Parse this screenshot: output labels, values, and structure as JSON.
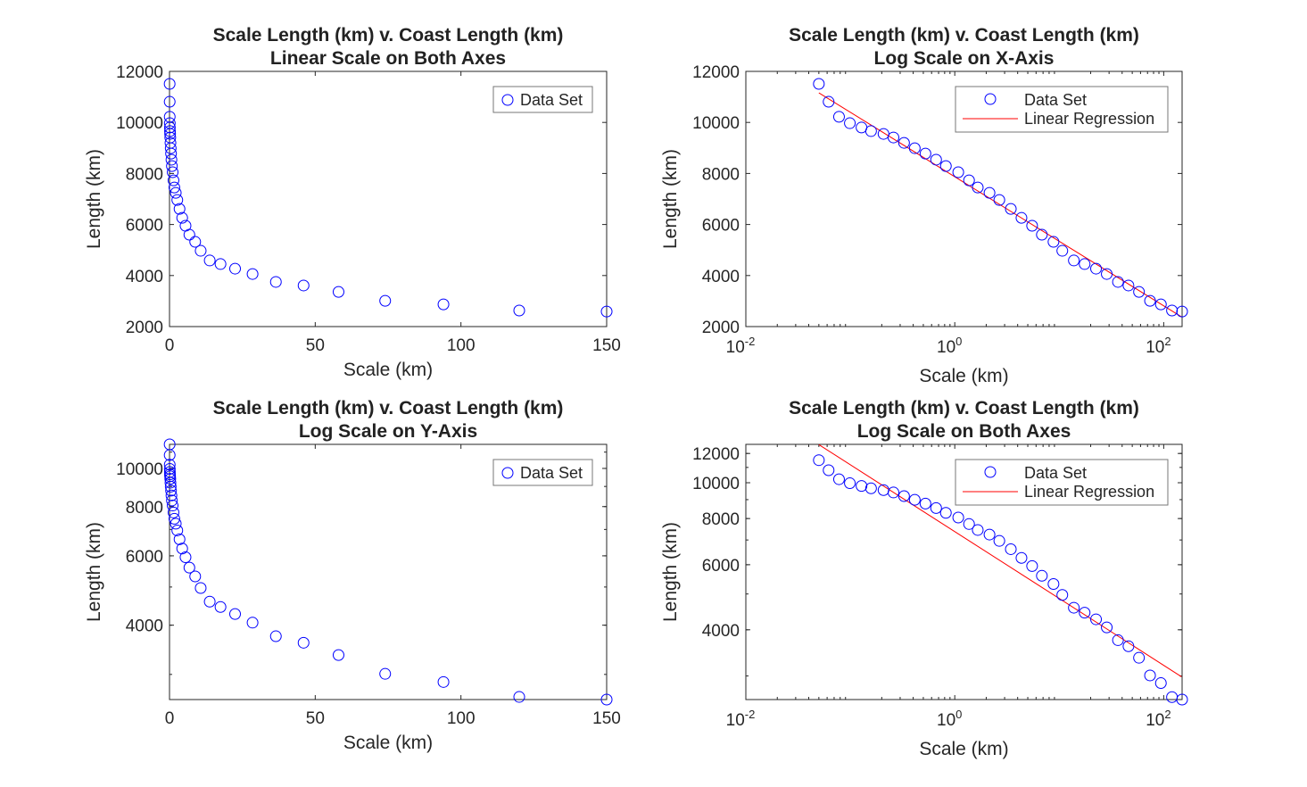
{
  "colors": {
    "marker": "#0000ff",
    "regression": "#ff0000",
    "axis": "#262626"
  },
  "chart_data": [
    {
      "type": "scatter",
      "title": [
        "Scale Length (km) v. Coast Length (km)",
        "Linear Scale on Both Axes"
      ],
      "xlabel": "Scale (km)",
      "ylabel": "Length (km)",
      "xscale": "linear",
      "yscale": "linear",
      "xlim": [
        0,
        150
      ],
      "ylim": [
        2000,
        12000
      ],
      "xticks": [
        0,
        50,
        100,
        150
      ],
      "yticks": [
        2000,
        4000,
        6000,
        8000,
        10000,
        12000
      ],
      "legend": {
        "position": "top-right",
        "entries": [
          "Data Set"
        ]
      },
      "grid": false
    },
    {
      "type": "scatter",
      "title": [
        "Scale Length (km) v. Coast Length (km)",
        "Log Scale on X-Axis"
      ],
      "xlabel": "Scale (km)",
      "ylabel": "Length (km)",
      "xscale": "log",
      "yscale": "linear",
      "xlim": [
        0.01,
        150
      ],
      "ylim": [
        2000,
        12000
      ],
      "xticks": [
        0.01,
        1,
        100
      ],
      "yticks": [
        2000,
        4000,
        6000,
        8000,
        10000,
        12000
      ],
      "legend": {
        "position": "top-right",
        "entries": [
          "Data Set",
          "Linear Regression"
        ]
      },
      "regression": {
        "x": [
          0.05,
          148
        ],
        "y": [
          11160,
          2383
        ]
      },
      "grid": false
    },
    {
      "type": "scatter",
      "title": [
        "Scale Length (km) v. Coast Length (km)",
        "Log Scale on Y-Axis"
      ],
      "xlabel": "Scale (km)",
      "ylabel": "Length (km)",
      "xscale": "linear",
      "yscale": "log",
      "xlim": [
        0,
        150
      ],
      "ylim": [
        2590,
        11510
      ],
      "xticks": [
        0,
        50,
        100,
        150
      ],
      "yticks": [
        4000,
        6000,
        8000,
        10000
      ],
      "legend": {
        "position": "top-right",
        "entries": [
          "Data Set"
        ]
      },
      "grid": false
    },
    {
      "type": "scatter",
      "title": [
        "Scale Length (km) v. Coast Length (km)",
        "Log Scale on Both Axes"
      ],
      "xlabel": "Scale (km)",
      "ylabel": "Length (km)",
      "xscale": "log",
      "yscale": "log",
      "xlim": [
        0.01,
        150
      ],
      "ylim": [
        2590,
        12700
      ],
      "xticks": [
        0.01,
        1,
        100
      ],
      "yticks": [
        4000,
        6000,
        8000,
        10000,
        12000
      ],
      "legend": {
        "position": "top-right",
        "entries": [
          "Data Set",
          "Linear Regression"
        ]
      },
      "regression": {
        "x": [
          0.05,
          148
        ],
        "y": [
          12680,
          2986
        ]
      },
      "grid": false
    }
  ],
  "data_set": {
    "x": [
      0.05,
      0.062,
      0.078,
      0.099,
      0.128,
      0.158,
      0.208,
      0.259,
      0.327,
      0.414,
      0.524,
      0.663,
      0.822,
      1.08,
      1.37,
      1.66,
      2.15,
      2.67,
      3.44,
      4.35,
      5.5,
      6.82,
      8.81,
      10.7,
      13.8,
      17.5,
      22.5,
      28.5,
      36.5,
      46,
      58,
      74,
      94,
      120,
      150
    ],
    "y": [
      11510,
      10810,
      10220,
      9970,
      9800,
      9660,
      9550,
      9410,
      9200,
      8990,
      8780,
      8540,
      8290,
      8050,
      7730,
      7450,
      7240,
      6960,
      6610,
      6260,
      5950,
      5600,
      5320,
      4970,
      4590,
      4450,
      4270,
      4060,
      3750,
      3610,
      3360,
      3010,
      2870,
      2630,
      2590
    ]
  }
}
